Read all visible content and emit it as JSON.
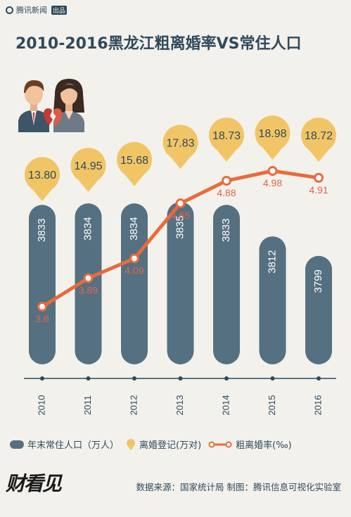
{
  "brand": {
    "name": "腾讯新闻",
    "badge": "出品"
  },
  "title": "2010-2016黑龙江粗离婚率VS常住人口",
  "legend": {
    "population": "年末常住人口（万人）",
    "registrations": "离婚登记(万对)",
    "rate": "粗离婚率(‰)"
  },
  "footer": {
    "logo": "财看见",
    "source": "数据来源：国家统计局 制图：腾讯信息可视化实验室"
  },
  "colors": {
    "bar": "#557080",
    "bubble": "#f1c565",
    "line": "#ea6a3b",
    "text_dark": "#2f4a5c",
    "rate_label": "#e0654f"
  },
  "chart_data": {
    "type": "bar",
    "title": "2010-2016黑龙江粗离婚率VS常住人口",
    "categories": [
      "2010",
      "2011",
      "2012",
      "2013",
      "2014",
      "2015",
      "2016"
    ],
    "series": [
      {
        "name": "年末常住人口（万人）",
        "type": "bar",
        "values": [
          3833,
          3834,
          3834,
          3835,
          3833,
          3812,
          3799
        ]
      },
      {
        "name": "离婚登记(万对)",
        "type": "bubble",
        "values": [
          13.8,
          14.95,
          15.68,
          17.83,
          18.73,
          18.98,
          18.72
        ]
      },
      {
        "name": "粗离婚率(‰)",
        "type": "line",
        "values": [
          3.6,
          3.89,
          4.09,
          4.65,
          4.88,
          4.98,
          4.91
        ]
      }
    ],
    "labels": {
      "population": [
        "3833",
        "3834",
        "3834",
        "3835",
        "3833",
        "3812",
        "3799"
      ],
      "registrations": [
        "13.80",
        "14.95",
        "15.68",
        "17.83",
        "18.73",
        "18.98",
        "18.72"
      ],
      "rate": [
        "3.6",
        "3.89",
        "4.09",
        "4.65",
        "4.88",
        "4.98",
        "4.91"
      ]
    },
    "legend_position": "bottom"
  }
}
